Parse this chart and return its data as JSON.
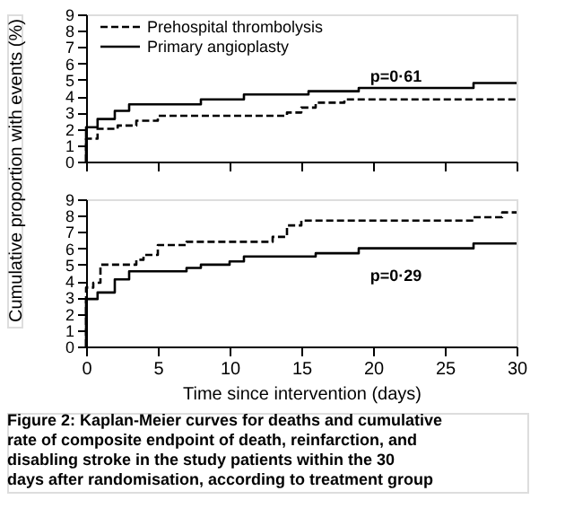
{
  "chart_data": [
    {
      "type": "step",
      "ylabel": "Cumulative proportion with events (%)",
      "xlim": [
        0,
        30
      ],
      "xticks": [
        0,
        5,
        10,
        15,
        20,
        25,
        30
      ],
      "ylim": [
        0,
        9
      ],
      "yticks": [
        0,
        1,
        2,
        3,
        4,
        5,
        6,
        7,
        8,
        9
      ],
      "tick_labels": "y",
      "grid": false,
      "legend": "top left",
      "annotations": [
        "p=0·61"
      ],
      "series": [
        {
          "name": "Prehospital thrombolysis",
          "color": "#000000",
          "line_style": "dashed",
          "x": [
            0,
            0,
            0.8,
            2.2,
            3.5,
            5,
            14,
            15,
            16,
            18,
            30
          ],
          "values": [
            0,
            1.4,
            2.0,
            2.2,
            2.5,
            2.8,
            3.0,
            3.3,
            3.6,
            3.8,
            3.8
          ]
        },
        {
          "name": "Primary angioplasty",
          "color": "#000000",
          "line_style": "solid",
          "x": [
            0,
            0,
            0.8,
            2,
            3,
            8,
            11,
            15.5,
            19,
            27,
            30
          ],
          "values": [
            0,
            2.1,
            2.6,
            3.1,
            3.5,
            3.8,
            4.1,
            4.3,
            4.5,
            4.8,
            4.8
          ]
        }
      ]
    },
    {
      "type": "step",
      "xlabel": "Time since intervention (days)",
      "xlim": [
        0,
        30
      ],
      "xticks": [
        0,
        5,
        10,
        15,
        20,
        25,
        30
      ],
      "ylim": [
        0,
        9
      ],
      "yticks": [
        0,
        1,
        2,
        3,
        4,
        5,
        6,
        7,
        8,
        9
      ],
      "grid": false,
      "annotations": [
        "p=0·29",
        "Figure 2: Kaplan-Meier curves for deaths and cumulative rate of composite endpoint of death, reinfarction, and disabling stroke in the study patients within the 30 days after randomisation, according to treatment group"
      ],
      "series": [
        {
          "color": "#000000",
          "line_style": "dashed",
          "x": [
            0,
            0,
            0.5,
            1,
            3.5,
            4,
            5,
            7,
            13,
            14,
            15,
            27,
            29,
            30
          ],
          "values": [
            0,
            3.6,
            3.9,
            5.0,
            5.3,
            5.6,
            6.2,
            6.4,
            6.7,
            7.4,
            7.7,
            7.9,
            8.2,
            8.2
          ]
        },
        {
          "color": "#000000",
          "line_style": "solid",
          "x": [
            0,
            0,
            0.8,
            2,
            3,
            7,
            8,
            10,
            11,
            16,
            19,
            27,
            30
          ],
          "values": [
            0,
            2.9,
            3.3,
            4.1,
            4.6,
            4.8,
            5.0,
            5.2,
            5.5,
            5.7,
            6.0,
            6.3,
            6.3
          ]
        }
      ]
    }
  ]
}
